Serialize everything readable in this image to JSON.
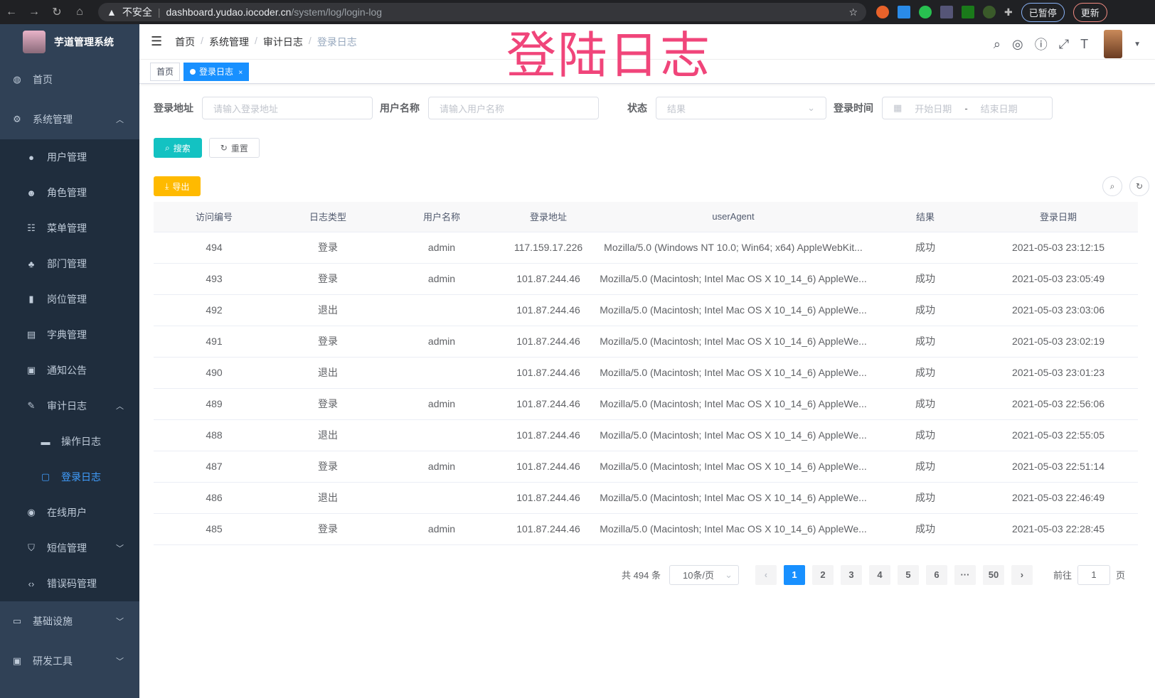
{
  "browser": {
    "insecure": "不安全",
    "url_host": "dashboard.yudao.iocoder.cn",
    "url_path": "/system/log/login-log",
    "profile": "已暂停",
    "update": "更新"
  },
  "overlay_title": "登陆日志",
  "sidebar": {
    "title": "芋道管理系统",
    "items": [
      {
        "label": "首页",
        "icon": "dashboard-icon"
      },
      {
        "label": "系统管理",
        "icon": "gear-icon",
        "expanded": true
      },
      {
        "label": "用户管理",
        "icon": "user-icon"
      },
      {
        "label": "角色管理",
        "icon": "role-icon"
      },
      {
        "label": "菜单管理",
        "icon": "menu-icon"
      },
      {
        "label": "部门管理",
        "icon": "tree-icon"
      },
      {
        "label": "岗位管理",
        "icon": "post-icon"
      },
      {
        "label": "字典管理",
        "icon": "dict-icon"
      },
      {
        "label": "通知公告",
        "icon": "message-icon"
      },
      {
        "label": "审计日志",
        "icon": "edit-icon",
        "expanded": true
      },
      {
        "label": "操作日志",
        "icon": "form-icon"
      },
      {
        "label": "登录日志",
        "icon": "logininfor-icon",
        "active": true
      },
      {
        "label": "在线用户",
        "icon": "online-icon"
      },
      {
        "label": "短信管理",
        "icon": "shield-icon"
      },
      {
        "label": "错误码管理",
        "icon": "code-icon"
      },
      {
        "label": "基础设施",
        "icon": "monitor-icon"
      },
      {
        "label": "研发工具",
        "icon": "tool-icon"
      }
    ]
  },
  "breadcrumb": [
    "首页",
    "系统管理",
    "审计日志",
    "登录日志"
  ],
  "tags": [
    {
      "label": "首页"
    },
    {
      "label": "登录日志",
      "active": true
    }
  ],
  "filters": {
    "ip_label": "登录地址",
    "ip_placeholder": "请输入登录地址",
    "user_label": "用户名称",
    "user_placeholder": "请输入用户名称",
    "status_label": "状态",
    "status_placeholder": "结果",
    "time_label": "登录时间",
    "start_placeholder": "开始日期",
    "range_sep": "-",
    "end_placeholder": "结束日期"
  },
  "buttons": {
    "search": "搜索",
    "reset": "重置",
    "export": "导出"
  },
  "table": {
    "columns": [
      "访问编号",
      "日志类型",
      "用户名称",
      "登录地址",
      "userAgent",
      "结果",
      "登录日期"
    ],
    "rows": [
      [
        "494",
        "登录",
        "admin",
        "117.159.17.226",
        "Mozilla/5.0 (Windows NT 10.0; Win64; x64) AppleWebKit...",
        "成功",
        "2021-05-03 23:12:15"
      ],
      [
        "493",
        "登录",
        "admin",
        "101.87.244.46",
        "Mozilla/5.0 (Macintosh; Intel Mac OS X 10_14_6) AppleWe...",
        "成功",
        "2021-05-03 23:05:49"
      ],
      [
        "492",
        "退出",
        "",
        "101.87.244.46",
        "Mozilla/5.0 (Macintosh; Intel Mac OS X 10_14_6) AppleWe...",
        "成功",
        "2021-05-03 23:03:06"
      ],
      [
        "491",
        "登录",
        "admin",
        "101.87.244.46",
        "Mozilla/5.0 (Macintosh; Intel Mac OS X 10_14_6) AppleWe...",
        "成功",
        "2021-05-03 23:02:19"
      ],
      [
        "490",
        "退出",
        "",
        "101.87.244.46",
        "Mozilla/5.0 (Macintosh; Intel Mac OS X 10_14_6) AppleWe...",
        "成功",
        "2021-05-03 23:01:23"
      ],
      [
        "489",
        "登录",
        "admin",
        "101.87.244.46",
        "Mozilla/5.0 (Macintosh; Intel Mac OS X 10_14_6) AppleWe...",
        "成功",
        "2021-05-03 22:56:06"
      ],
      [
        "488",
        "退出",
        "",
        "101.87.244.46",
        "Mozilla/5.0 (Macintosh; Intel Mac OS X 10_14_6) AppleWe...",
        "成功",
        "2021-05-03 22:55:05"
      ],
      [
        "487",
        "登录",
        "admin",
        "101.87.244.46",
        "Mozilla/5.0 (Macintosh; Intel Mac OS X 10_14_6) AppleWe...",
        "成功",
        "2021-05-03 22:51:14"
      ],
      [
        "486",
        "退出",
        "",
        "101.87.244.46",
        "Mozilla/5.0 (Macintosh; Intel Mac OS X 10_14_6) AppleWe...",
        "成功",
        "2021-05-03 22:46:49"
      ],
      [
        "485",
        "登录",
        "admin",
        "101.87.244.46",
        "Mozilla/5.0 (Macintosh; Intel Mac OS X 10_14_6) AppleWe...",
        "成功",
        "2021-05-03 22:28:45"
      ]
    ]
  },
  "pagination": {
    "total": "共 494 条",
    "page_size": "10条/页",
    "pages": [
      "1",
      "2",
      "3",
      "4",
      "5",
      "6",
      "···",
      "50"
    ],
    "current": "1",
    "goto_label": "前往",
    "goto_value": "1",
    "goto_suffix": "页"
  },
  "colors": {
    "sidebar": "#304156",
    "submenu": "#1f2d3d",
    "active": "#409eff",
    "primary": "#1890ff",
    "search": "#13c2c2",
    "export": "#ffba00",
    "overlay": "#f0457a"
  }
}
